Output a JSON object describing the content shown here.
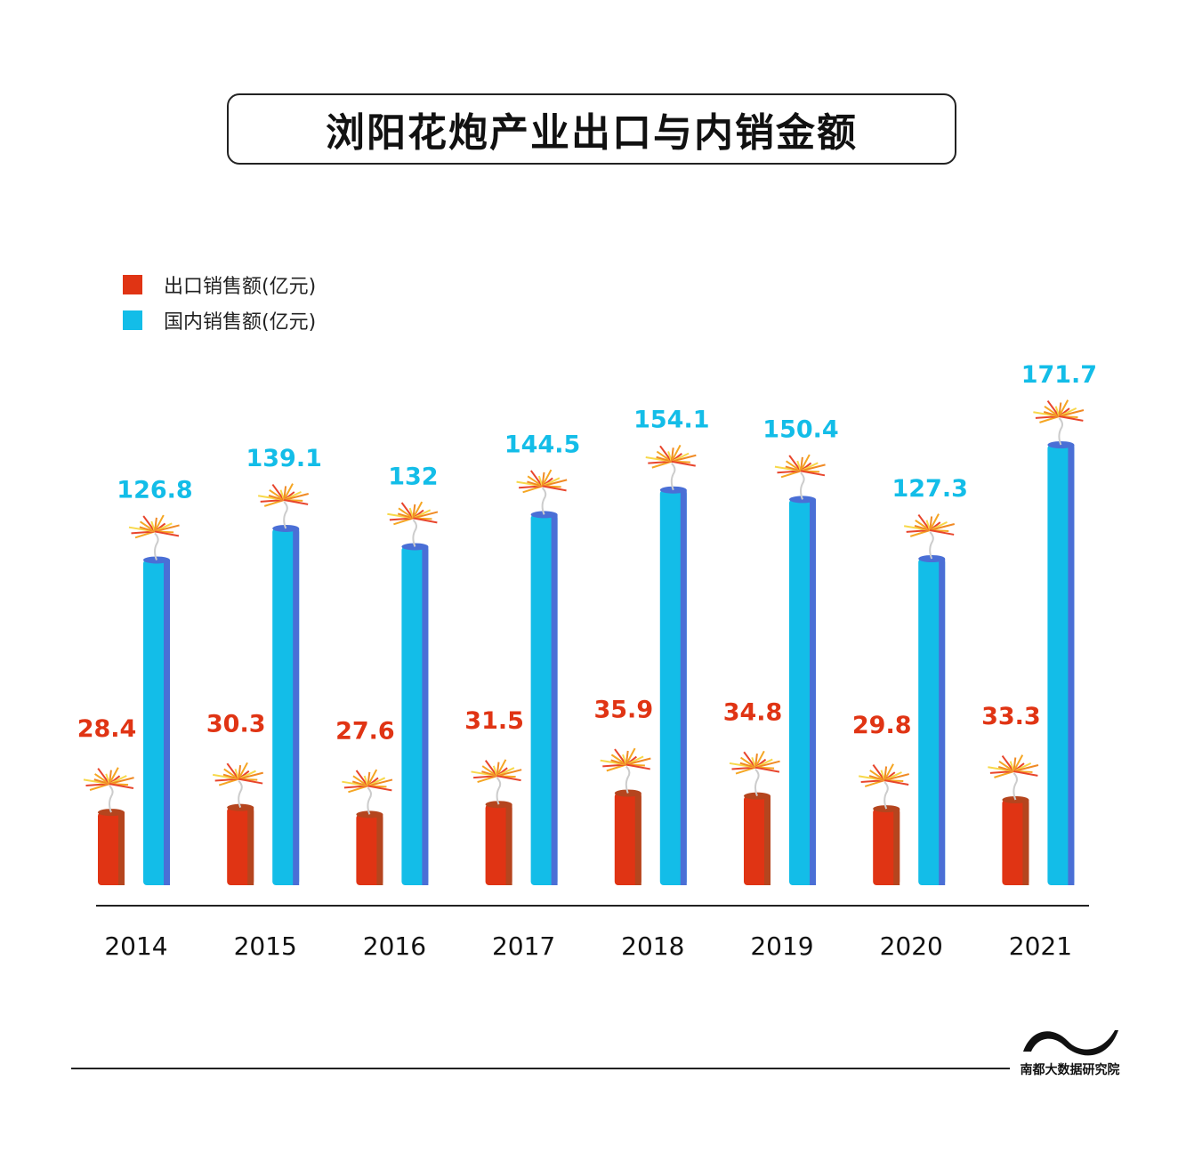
{
  "chart_data": {
    "type": "bar",
    "title": "浏阳花炮产业出口与内销金额",
    "categories": [
      "2014",
      "2015",
      "2016",
      "2017",
      "2018",
      "2019",
      "2020",
      "2021"
    ],
    "series": [
      {
        "name": "出口销售额(亿元)",
        "color": "#e03414",
        "label_color": "#e03414",
        "values": [
          28.4,
          30.3,
          27.6,
          31.5,
          35.9,
          34.8,
          29.8,
          33.3
        ]
      },
      {
        "name": "国内销售额(亿元)",
        "color": "#13bde8",
        "label_color": "#13bde8",
        "values": [
          126.8,
          139.1,
          132,
          144.5,
          154.1,
          150.4,
          127.3,
          171.7
        ]
      }
    ],
    "legend": "top-left",
    "grid": false,
    "ylim": [
      0,
      171.7
    ]
  },
  "value_labels": {
    "export": [
      "28.4",
      "30.3",
      "27.6",
      "31.5",
      "35.9",
      "34.8",
      "29.8",
      "33.3"
    ],
    "domestic": [
      "126.8",
      "139.1",
      "132",
      "144.5",
      "154.1",
      "150.4",
      "127.3",
      "171.7"
    ]
  },
  "logo": {
    "text": "南都大数据研究院"
  }
}
